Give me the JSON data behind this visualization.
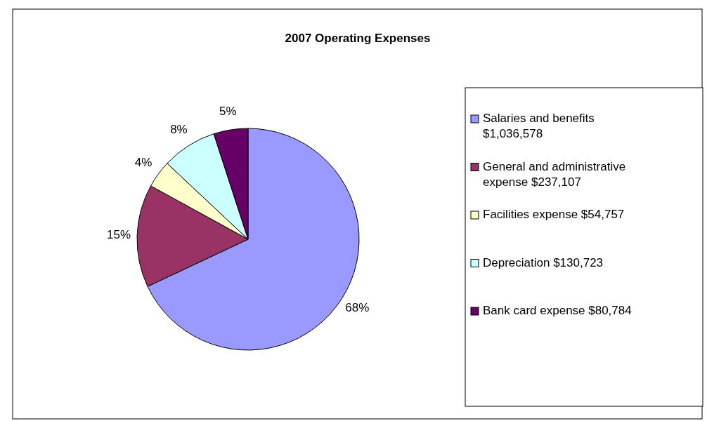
{
  "chart_data": {
    "type": "pie",
    "title": "2007 Operating Expenses",
    "categories": [
      "Salaries and benefits $1,036,578",
      "General and administrative expense $237,107",
      "Facilities expense $54,757",
      "Depreciation $130,723",
      "Bank card expense $80,784"
    ],
    "values": [
      68,
      15,
      4,
      8,
      5
    ],
    "colors": [
      "#9999ff",
      "#993366",
      "#ffffcc",
      "#ccffff",
      "#660066"
    ],
    "value_labels": [
      "68%",
      "15%",
      "4%",
      "8%",
      "5%"
    ],
    "legend": "right"
  }
}
